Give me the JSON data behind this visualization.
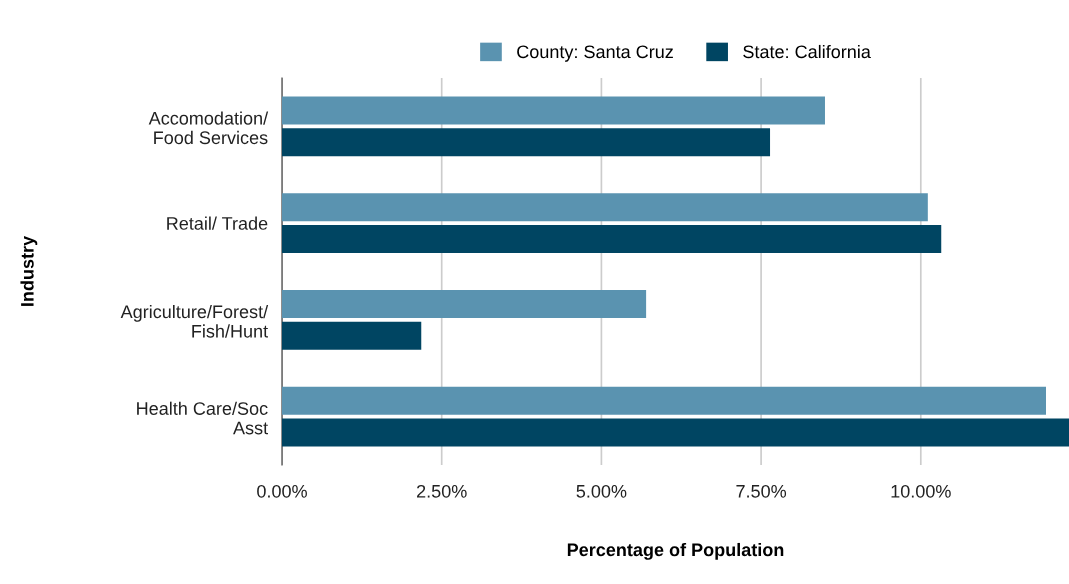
{
  "chart_data": {
    "type": "bar",
    "orientation": "horizontal",
    "xlabel": "Percentage of Population",
    "ylabel": "Industry",
    "categories": [
      "Accomodation/\nFood Services",
      "Retail/ Trade",
      "Agriculture/Forest/\nFish/Hunt",
      "Health Care/Soc\nAsst"
    ],
    "series": [
      {
        "name": "County: Santa Cruz",
        "color": "#5a93b0",
        "values": [
          8.5,
          10.11,
          5.7,
          11.96
        ]
      },
      {
        "name": "State: California",
        "color": "#004562",
        "values": [
          7.64,
          10.32,
          2.18,
          12.32
        ]
      }
    ],
    "xlim": [
      0,
      12.32
    ],
    "xticks": [
      {
        "value": 0,
        "label": "0.00%"
      },
      {
        "value": 2.5,
        "label": "2.50%"
      },
      {
        "value": 5,
        "label": "5.00%"
      },
      {
        "value": 7.5,
        "label": "7.50%"
      },
      {
        "value": 10,
        "label": "10.00%"
      }
    ],
    "grid": "x",
    "legend": "top"
  }
}
